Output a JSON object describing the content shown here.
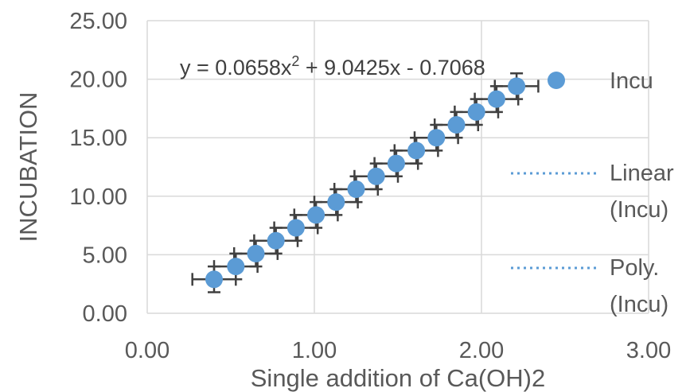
{
  "chart_data": {
    "type": "scatter",
    "xlabel": "Single addition of Ca(OH)2",
    "ylabel": "INCUBATION",
    "xlim": [
      0,
      3
    ],
    "ylim": [
      0,
      25
    ],
    "x_ticks": [
      "0.00",
      "1.00",
      "2.00",
      "3.00"
    ],
    "y_ticks": [
      "0.00",
      "5.00",
      "10.00",
      "15.00",
      "20.00",
      "25.00"
    ],
    "grid": true,
    "legend_position": "right",
    "legend": [
      {
        "label": "Incu",
        "kind": "marker"
      },
      {
        "label": "Linear",
        "label2": "(Incu)",
        "kind": "dotted-line"
      },
      {
        "label": "Poly.",
        "label2": "(Incu)",
        "kind": "dotted-line"
      }
    ],
    "annotation": {
      "prefix": "y = 0.0658x",
      "sup": "2",
      "suffix": " + 9.0425x - 0.7068"
    },
    "series": [
      {
        "name": "Incu",
        "color": "#5b9bd5",
        "x": [
          0.4,
          0.53,
          0.65,
          0.77,
          0.89,
          1.01,
          1.13,
          1.25,
          1.37,
          1.49,
          1.61,
          1.73,
          1.85,
          1.97,
          2.09,
          2.21
        ],
        "y": [
          2.9,
          4.0,
          5.1,
          6.2,
          7.3,
          8.4,
          9.5,
          10.6,
          11.7,
          12.8,
          13.9,
          15.0,
          16.1,
          17.2,
          18.3,
          19.4
        ],
        "x_error": 0.13,
        "y_error": 1.1
      }
    ]
  }
}
